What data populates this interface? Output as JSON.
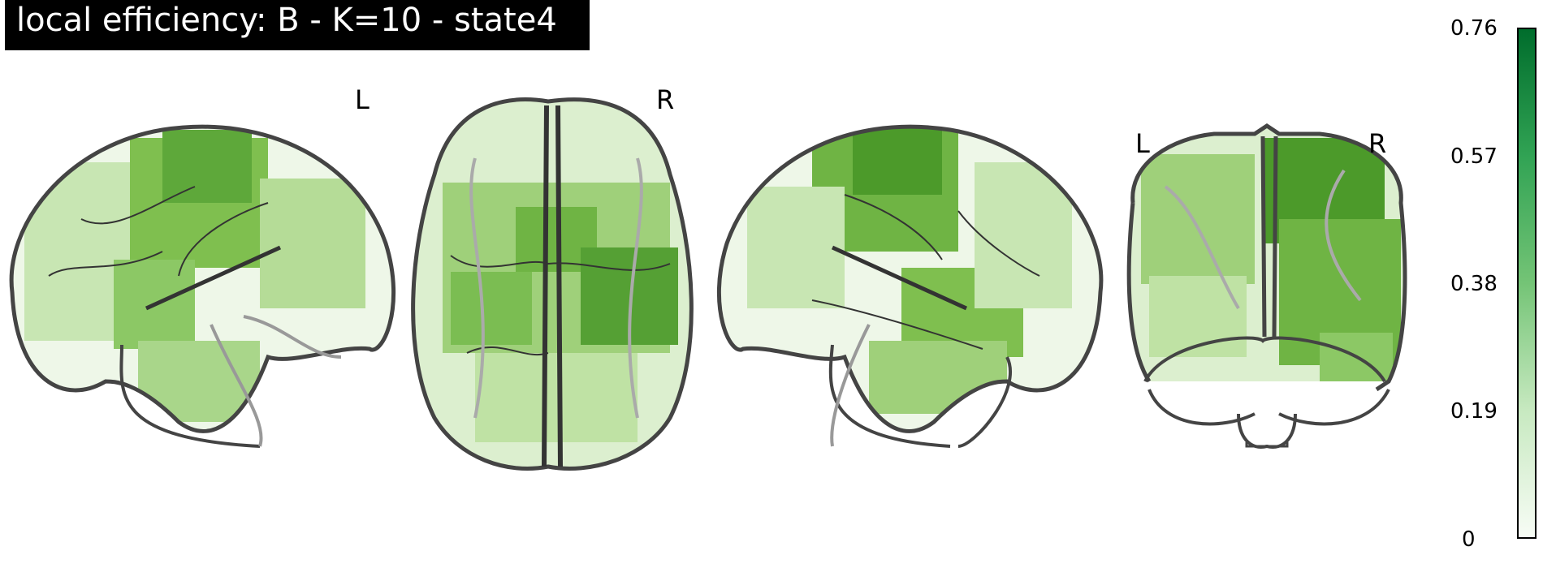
{
  "title": "local efficiency: B - K=10 - state4",
  "views": {
    "axial": {
      "left_label": "L",
      "right_label": "R"
    },
    "coronal": {
      "left_label": "L",
      "right_label": "R"
    }
  },
  "colorbar": {
    "ticks": [
      "0.76",
      "0.57",
      "0.38",
      "0.19",
      "0"
    ],
    "max": 0.76,
    "min": 0,
    "colormap": [
      "#f7fcf5",
      "#c7e9c0",
      "#74c476",
      "#31a354",
      "#006d2c"
    ]
  },
  "colors": {
    "outline": "#444444",
    "activation_light": "#dcefcf",
    "activation_mid": "#8cc865",
    "activation_dark": "#4c9a2a"
  }
}
